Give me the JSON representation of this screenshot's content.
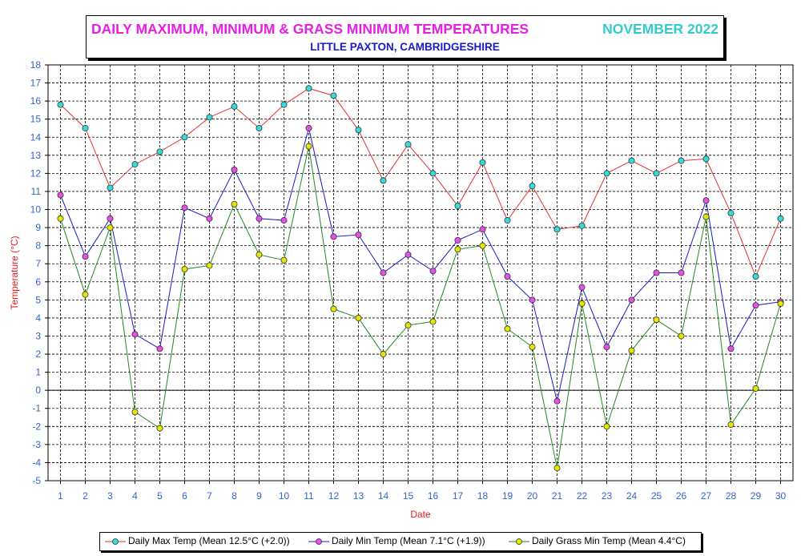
{
  "title": {
    "main": "DAILY MAXIMUM, MINIMUM & GRASS MINIMUM TEMPERATURES",
    "period": "NOVEMBER 2022",
    "location": "LITTLE PAXTON, CAMBRIDGESHIRE"
  },
  "colors": {
    "title_main": "#e61ee6",
    "title_period": "#33cccc",
    "location": "#1a1acc",
    "axis_label": "#e61e1e",
    "tick_label": "#3366cc",
    "max_line": "#e03030",
    "max_marker": "#33dddd",
    "min_line": "#1a1acc",
    "min_marker": "#e650e6",
    "grass_line": "#1e8c1e",
    "grass_marker": "#e6e600"
  },
  "chart_data": {
    "type": "line",
    "xlabel": "Date",
    "ylabel": "Temperature (°C)",
    "x": [
      1,
      2,
      3,
      4,
      5,
      6,
      7,
      8,
      9,
      10,
      11,
      12,
      13,
      14,
      15,
      16,
      17,
      18,
      19,
      20,
      21,
      22,
      23,
      24,
      25,
      26,
      27,
      28,
      29,
      30
    ],
    "ylim": [
      -5,
      18
    ],
    "yticks": [
      -5,
      -4,
      -3,
      -2,
      -1,
      0,
      1,
      2,
      3,
      4,
      5,
      6,
      7,
      8,
      9,
      10,
      11,
      12,
      13,
      14,
      15,
      16,
      17,
      18
    ],
    "grid": true,
    "legend_position": "bottom",
    "series": [
      {
        "name": "Daily Max Temp (Mean 12.5°C (+2.0))",
        "key": "max",
        "values": [
          15.8,
          14.5,
          11.2,
          12.5,
          13.2,
          14.0,
          15.1,
          15.7,
          14.5,
          15.8,
          16.7,
          16.3,
          14.4,
          11.6,
          13.6,
          12.0,
          10.2,
          12.6,
          9.4,
          11.3,
          8.9,
          9.1,
          12.0,
          12.7,
          12.0,
          12.7,
          12.8,
          9.8,
          6.3,
          9.5
        ]
      },
      {
        "name": "Daily Min Temp (Mean 7.1°C (+1.9))",
        "key": "min",
        "values": [
          10.8,
          7.4,
          9.5,
          3.1,
          2.3,
          10.1,
          9.5,
          12.2,
          9.5,
          9.4,
          14.5,
          8.5,
          8.6,
          6.5,
          7.5,
          6.6,
          8.3,
          8.9,
          6.3,
          5.0,
          -0.6,
          5.7,
          2.4,
          5.0,
          6.5,
          6.5,
          10.5,
          2.3,
          4.7,
          4.9
        ]
      },
      {
        "name": "Daily Grass Min Temp (Mean 4.4°C)",
        "key": "grass",
        "values": [
          9.5,
          5.3,
          9.0,
          -1.2,
          -2.1,
          6.7,
          6.9,
          10.3,
          7.5,
          7.2,
          13.5,
          4.5,
          4.0,
          2.0,
          3.6,
          3.8,
          7.8,
          8.0,
          3.4,
          2.4,
          -4.3,
          4.8,
          -2.0,
          2.2,
          3.9,
          3.0,
          9.6,
          -1.9,
          0.1,
          4.8
        ]
      }
    ]
  }
}
